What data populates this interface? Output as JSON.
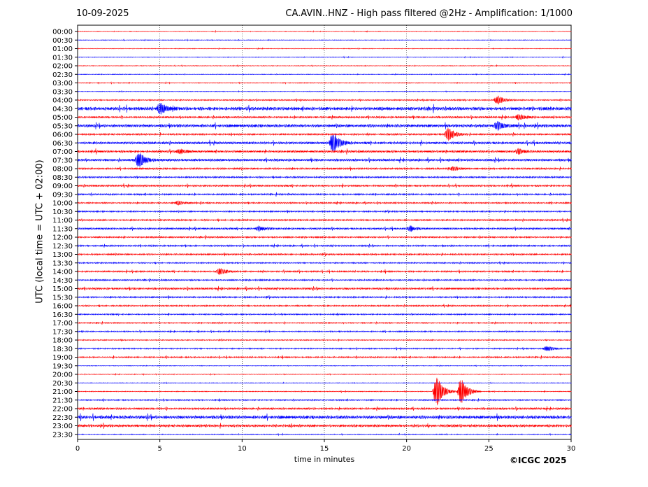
{
  "header": {
    "date": "10-09-2025",
    "title": "CA.AVIN..HNZ - High pass filtered @2Hz - Amplification: 1/1000"
  },
  "footer": {
    "copyright": "©ICGC 2025"
  },
  "chart_data": {
    "type": "line",
    "title": "CA.AVIN..HNZ - High pass filtered @2Hz - Amplification: 1/1000",
    "xlabel": "time in minutes",
    "ylabel": "UTC (local time = UTC + 02:00)",
    "xlim": [
      0,
      30
    ],
    "xticks": [
      0,
      5,
      10,
      15,
      20,
      25,
      30
    ],
    "vertical_grid": [
      5,
      10,
      15,
      20,
      25
    ],
    "grid": "vertical dotted lines",
    "legend": "none",
    "row_colors": [
      "#ff0000",
      "#0000ff"
    ],
    "rows": [
      "00:00",
      "00:30",
      "01:00",
      "01:30",
      "02:00",
      "02:30",
      "03:00",
      "03:30",
      "04:00",
      "04:30",
      "05:00",
      "05:30",
      "06:00",
      "06:30",
      "07:00",
      "07:30",
      "08:00",
      "08:30",
      "09:00",
      "09:30",
      "10:00",
      "10:30",
      "11:00",
      "11:30",
      "12:00",
      "12:30",
      "13:00",
      "13:30",
      "14:00",
      "14:30",
      "15:00",
      "15:30",
      "16:00",
      "16:30",
      "17:00",
      "17:30",
      "18:00",
      "18:30",
      "19:00",
      "19:30",
      "20:00",
      "20:30",
      "21:00",
      "21:30",
      "22:00",
      "22:30",
      "23:00",
      "23:30"
    ],
    "noise_level": [
      0.3,
      0.3,
      0.3,
      0.3,
      0.3,
      0.3,
      0.4,
      0.3,
      0.6,
      1.6,
      1.0,
      1.5,
      0.9,
      1.2,
      1.1,
      1.2,
      0.9,
      0.8,
      0.9,
      0.8,
      0.7,
      0.7,
      0.8,
      0.9,
      0.8,
      0.8,
      0.8,
      0.6,
      0.8,
      0.7,
      1.0,
      0.8,
      0.7,
      0.6,
      0.6,
      0.6,
      0.5,
      0.6,
      0.7,
      0.3,
      0.3,
      0.3,
      0.4,
      0.6,
      1.0,
      1.6,
      1.3,
      0.4
    ],
    "events": [
      {
        "row": "04:00",
        "minute": 25.5,
        "amplitude": 7
      },
      {
        "row": "04:30",
        "minute": 5.0,
        "amplitude": 9
      },
      {
        "row": "05:00",
        "minute": 26.8,
        "amplitude": 4
      },
      {
        "row": "05:30",
        "minute": 25.5,
        "amplitude": 6
      },
      {
        "row": "06:00",
        "minute": 22.5,
        "amplitude": 10
      },
      {
        "row": "06:30",
        "minute": 15.5,
        "amplitude": 16
      },
      {
        "row": "07:00",
        "minute": 6.2,
        "amplitude": 4
      },
      {
        "row": "07:00",
        "minute": 26.8,
        "amplitude": 4
      },
      {
        "row": "07:30",
        "minute": 3.7,
        "amplitude": 13
      },
      {
        "row": "08:00",
        "minute": 22.8,
        "amplitude": 3
      },
      {
        "row": "10:00",
        "minute": 6.1,
        "amplitude": 3
      },
      {
        "row": "11:30",
        "minute": 11.0,
        "amplitude": 4
      },
      {
        "row": "11:30",
        "minute": 20.2,
        "amplitude": 4
      },
      {
        "row": "14:00",
        "minute": 8.6,
        "amplitude": 5
      },
      {
        "row": "18:30",
        "minute": 28.5,
        "amplitude": 4
      },
      {
        "row": "21:00",
        "minute": 21.8,
        "amplitude": 24
      },
      {
        "row": "21:00",
        "minute": 23.3,
        "amplitude": 22
      }
    ]
  }
}
